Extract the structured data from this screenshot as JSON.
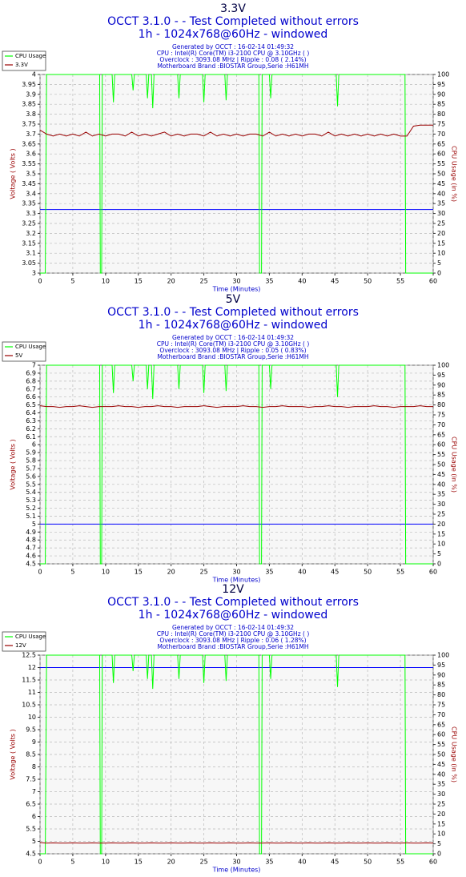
{
  "chart_data": [
    {
      "type": "line",
      "title": "3.3V",
      "subtitles": [
        "OCCT 3.1.0 -  - Test Completed without errors",
        "1h - 1024x768@60Hz - windowed"
      ],
      "info": [
        "Generated by OCCT : 16-02-14 01:49:32",
        "CPU : Intel(R) Core(TM) i3-2100 CPU @ 3.10GHz (  )",
        "Overclock : 3093.08 MHz | Ripple : 0.08 ( 2.14%)",
        "Motherboard Brand :BIOSTAR Group,Serie :H61MH"
      ],
      "xlabel": "Time (Minutes)",
      "ylabel": "Voltage ( Volts )",
      "y2label": "CPU Usage (in %)",
      "xlim": [
        0,
        60
      ],
      "xticks": [
        0,
        5,
        10,
        15,
        20,
        25,
        30,
        35,
        40,
        45,
        50,
        55,
        60
      ],
      "ylim": [
        3,
        4
      ],
      "yticks": [
        3,
        3.05,
        3.1,
        3.15,
        3.2,
        3.25,
        3.3,
        3.35,
        3.4,
        3.45,
        3.5,
        3.55,
        3.6,
        3.65,
        3.7,
        3.75,
        3.8,
        3.85,
        3.9,
        3.95,
        4
      ],
      "y2lim": [
        0,
        100
      ],
      "y2ticks": [
        0,
        5,
        10,
        15,
        20,
        25,
        30,
        35,
        40,
        45,
        50,
        55,
        60,
        65,
        70,
        75,
        80,
        85,
        90,
        95,
        100
      ],
      "grid": true,
      "legend": "top-left",
      "reference_line": {
        "value": 3.32,
        "color": "#0000ff"
      },
      "series": [
        {
          "name": "CPU Usage",
          "color": "#00ff00",
          "axis": "y2",
          "x": [
            0,
            0.8,
            1.0,
            9.1,
            9.2,
            9.4,
            9.5,
            11.0,
            11.2,
            11.4,
            14.0,
            14.2,
            14.4,
            16.2,
            16.4,
            16.6,
            17.0,
            17.2,
            17.4,
            21.0,
            21.2,
            21.4,
            24.8,
            25.0,
            25.2,
            28.2,
            28.4,
            28.6,
            33.4,
            33.5,
            33.8,
            33.9,
            35.0,
            35.2,
            35.4,
            45.2,
            45.4,
            45.6,
            55.7,
            55.8,
            60
          ],
          "values": [
            0,
            0,
            100,
            100,
            0,
            0,
            100,
            100,
            86,
            100,
            100,
            92,
            100,
            100,
            88,
            100,
            100,
            83,
            100,
            100,
            88,
            100,
            100,
            86,
            100,
            100,
            87,
            100,
            100,
            0,
            0,
            100,
            100,
            88,
            100,
            100,
            84,
            100,
            100,
            0,
            0
          ]
        },
        {
          "name": "3.3V",
          "color": "#990000",
          "x": [
            0,
            1,
            2,
            3,
            4,
            5,
            6,
            7,
            8,
            9,
            10,
            11,
            12,
            13,
            14,
            15,
            16,
            17,
            18,
            19,
            20,
            21,
            22,
            23,
            24,
            25,
            26,
            27,
            28,
            29,
            30,
            31,
            32,
            33,
            34,
            35,
            36,
            37,
            38,
            39,
            40,
            41,
            42,
            43,
            44,
            45,
            46,
            47,
            48,
            49,
            50,
            51,
            52,
            53,
            54,
            55,
            56,
            57,
            58,
            59,
            60
          ],
          "values": [
            3.72,
            3.7,
            3.69,
            3.7,
            3.69,
            3.7,
            3.69,
            3.71,
            3.69,
            3.7,
            3.69,
            3.7,
            3.7,
            3.69,
            3.71,
            3.69,
            3.7,
            3.69,
            3.7,
            3.71,
            3.69,
            3.7,
            3.69,
            3.7,
            3.7,
            3.69,
            3.71,
            3.69,
            3.7,
            3.69,
            3.7,
            3.69,
            3.7,
            3.7,
            3.69,
            3.71,
            3.69,
            3.7,
            3.69,
            3.7,
            3.69,
            3.7,
            3.7,
            3.69,
            3.71,
            3.69,
            3.7,
            3.69,
            3.7,
            3.69,
            3.7,
            3.69,
            3.7,
            3.69,
            3.7,
            3.69,
            3.69,
            3.74,
            3.745,
            3.745,
            3.745
          ]
        }
      ]
    },
    {
      "type": "line",
      "title": "5V",
      "subtitles": [
        "OCCT 3.1.0 -  - Test Completed without errors",
        "1h - 1024x768@60Hz - windowed"
      ],
      "info": [
        "Generated by OCCT : 16-02-14 01:49:32",
        "CPU : Intel(R) Core(TM) i3-2100 CPU @ 3.10GHz (  )",
        "Overclock : 3093.08 MHz | Ripple : 0.05 ( 0.83%)",
        "Motherboard Brand :BIOSTAR Group,Serie :H61MH"
      ],
      "xlabel": "Time (Minutes)",
      "ylabel": "Voltage ( Volts )",
      "y2label": "CPU Usage (in %)",
      "xlim": [
        0,
        60
      ],
      "xticks": [
        0,
        5,
        10,
        15,
        20,
        25,
        30,
        35,
        40,
        45,
        50,
        55,
        60
      ],
      "ylim": [
        4.5,
        7
      ],
      "yticks": [
        4.5,
        4.6,
        4.7,
        4.8,
        4.9,
        5,
        5.1,
        5.2,
        5.3,
        5.4,
        5.5,
        5.6,
        5.7,
        5.8,
        5.9,
        6,
        6.1,
        6.2,
        6.3,
        6.4,
        6.5,
        6.6,
        6.7,
        6.8,
        6.9,
        7
      ],
      "y2lim": [
        0,
        100
      ],
      "y2ticks": [
        0,
        5,
        10,
        15,
        20,
        25,
        30,
        35,
        40,
        45,
        50,
        55,
        60,
        65,
        70,
        75,
        80,
        85,
        90,
        95,
        100
      ],
      "grid": true,
      "legend": "top-left",
      "reference_line": {
        "value": 5,
        "color": "#0000ff"
      },
      "series": [
        {
          "name": "CPU Usage",
          "color": "#00ff00",
          "axis": "y2",
          "x": [
            0,
            0.8,
            1.0,
            9.1,
            9.2,
            9.4,
            9.5,
            11.0,
            11.2,
            11.4,
            14.0,
            14.2,
            14.4,
            16.2,
            16.4,
            16.6,
            17.0,
            17.2,
            17.4,
            21.0,
            21.2,
            21.4,
            24.8,
            25.0,
            25.2,
            28.2,
            28.4,
            28.6,
            33.4,
            33.5,
            33.8,
            33.9,
            35.0,
            35.2,
            35.4,
            45.2,
            45.4,
            45.6,
            55.7,
            55.8,
            60
          ],
          "values": [
            0,
            0,
            100,
            100,
            0,
            0,
            100,
            100,
            86,
            100,
            100,
            92,
            100,
            100,
            88,
            100,
            100,
            83,
            100,
            100,
            88,
            100,
            100,
            86,
            100,
            100,
            87,
            100,
            100,
            0,
            0,
            100,
            100,
            88,
            100,
            100,
            84,
            100,
            100,
            0,
            0
          ]
        },
        {
          "name": "5V",
          "color": "#990000",
          "x": [
            0,
            1,
            2,
            3,
            4,
            5,
            6,
            7,
            8,
            9,
            10,
            11,
            12,
            13,
            14,
            15,
            16,
            17,
            18,
            19,
            20,
            21,
            22,
            23,
            24,
            25,
            26,
            27,
            28,
            29,
            30,
            31,
            32,
            33,
            34,
            35,
            36,
            37,
            38,
            39,
            40,
            41,
            42,
            43,
            44,
            45,
            46,
            47,
            48,
            49,
            50,
            51,
            52,
            53,
            54,
            55,
            56,
            57,
            58,
            59,
            60
          ],
          "values": [
            6.49,
            6.48,
            6.48,
            6.47,
            6.48,
            6.48,
            6.49,
            6.48,
            6.47,
            6.48,
            6.48,
            6.48,
            6.49,
            6.48,
            6.48,
            6.47,
            6.48,
            6.48,
            6.49,
            6.48,
            6.48,
            6.47,
            6.48,
            6.48,
            6.48,
            6.49,
            6.48,
            6.47,
            6.48,
            6.48,
            6.48,
            6.49,
            6.48,
            6.48,
            6.47,
            6.48,
            6.48,
            6.49,
            6.48,
            6.48,
            6.48,
            6.47,
            6.48,
            6.48,
            6.49,
            6.48,
            6.48,
            6.47,
            6.48,
            6.48,
            6.48,
            6.49,
            6.48,
            6.48,
            6.47,
            6.48,
            6.48,
            6.48,
            6.49,
            6.48,
            6.48
          ]
        }
      ]
    },
    {
      "type": "line",
      "title": "12V",
      "subtitles": [
        "OCCT 3.1.0 -  - Test Completed without errors",
        "1h - 1024x768@60Hz - windowed"
      ],
      "info": [
        "Generated by OCCT : 16-02-14 01:49:32",
        "CPU : Intel(R) Core(TM) i3-2100 CPU @ 3.10GHz (  )",
        "Overclock : 3093.08 MHz | Ripple : 0.06 ( 1.28%)",
        "Motherboard Brand :BIOSTAR Group,Serie :H61MH"
      ],
      "xlabel": "Time (Minutes)",
      "ylabel": "Voltage ( Volts )",
      "y2label": "CPU Usage (in %)",
      "xlim": [
        0,
        60
      ],
      "xticks": [
        0,
        5,
        10,
        15,
        20,
        25,
        30,
        35,
        40,
        45,
        50,
        55,
        60
      ],
      "ylim": [
        4.5,
        12.5
      ],
      "yticks": [
        4.5,
        5,
        5.5,
        6,
        6.5,
        7,
        7.5,
        8,
        8.5,
        9,
        9.5,
        10,
        10.5,
        11,
        11.5,
        12,
        12.5
      ],
      "y2lim": [
        0,
        100
      ],
      "y2ticks": [
        0,
        5,
        10,
        15,
        20,
        25,
        30,
        35,
        40,
        45,
        50,
        55,
        60,
        65,
        70,
        75,
        80,
        85,
        90,
        95,
        100
      ],
      "grid": true,
      "legend": "top-left",
      "reference_line": {
        "value": 12,
        "color": "#0000ff"
      },
      "series": [
        {
          "name": "CPU Usage",
          "color": "#00ff00",
          "axis": "y2",
          "x": [
            0,
            0.8,
            1.0,
            9.1,
            9.2,
            9.4,
            9.5,
            11.0,
            11.2,
            11.4,
            14.0,
            14.2,
            14.4,
            16.2,
            16.4,
            16.6,
            17.0,
            17.2,
            17.4,
            21.0,
            21.2,
            21.4,
            24.8,
            25.0,
            25.2,
            28.2,
            28.4,
            28.6,
            33.4,
            33.5,
            33.8,
            33.9,
            35.0,
            35.2,
            35.4,
            45.2,
            45.4,
            45.6,
            55.7,
            55.8,
            60
          ],
          "values": [
            0,
            0,
            100,
            100,
            0,
            0,
            100,
            100,
            86,
            100,
            100,
            92,
            100,
            100,
            88,
            100,
            100,
            83,
            100,
            100,
            88,
            100,
            100,
            86,
            100,
            100,
            87,
            100,
            100,
            0,
            0,
            100,
            100,
            88,
            100,
            100,
            84,
            100,
            100,
            0,
            0
          ]
        },
        {
          "name": "12V",
          "color": "#990000",
          "x": [
            0,
            1,
            2,
            3,
            4,
            5,
            6,
            7,
            8,
            9,
            10,
            11,
            12,
            13,
            14,
            15,
            16,
            17,
            18,
            19,
            20,
            21,
            22,
            23,
            24,
            25,
            26,
            27,
            28,
            29,
            30,
            31,
            32,
            33,
            34,
            35,
            36,
            37,
            38,
            39,
            40,
            41,
            42,
            43,
            44,
            45,
            46,
            47,
            48,
            49,
            50,
            51,
            52,
            53,
            54,
            55,
            56,
            57,
            58,
            59,
            60
          ],
          "values": [
            4.95,
            4.93,
            4.94,
            4.93,
            4.93,
            4.94,
            4.93,
            4.93,
            4.94,
            4.93,
            4.93,
            4.94,
            4.93,
            4.93,
            4.94,
            4.93,
            4.93,
            4.94,
            4.93,
            4.93,
            4.94,
            4.93,
            4.93,
            4.94,
            4.93,
            4.93,
            4.94,
            4.93,
            4.93,
            4.94,
            4.93,
            4.93,
            4.94,
            4.93,
            4.93,
            4.94,
            4.93,
            4.93,
            4.94,
            4.93,
            4.93,
            4.94,
            4.93,
            4.93,
            4.94,
            4.93,
            4.93,
            4.94,
            4.93,
            4.93,
            4.94,
            4.93,
            4.93,
            4.94,
            4.93,
            4.93,
            4.94,
            4.93,
            4.93,
            4.94,
            4.93
          ]
        }
      ]
    }
  ]
}
